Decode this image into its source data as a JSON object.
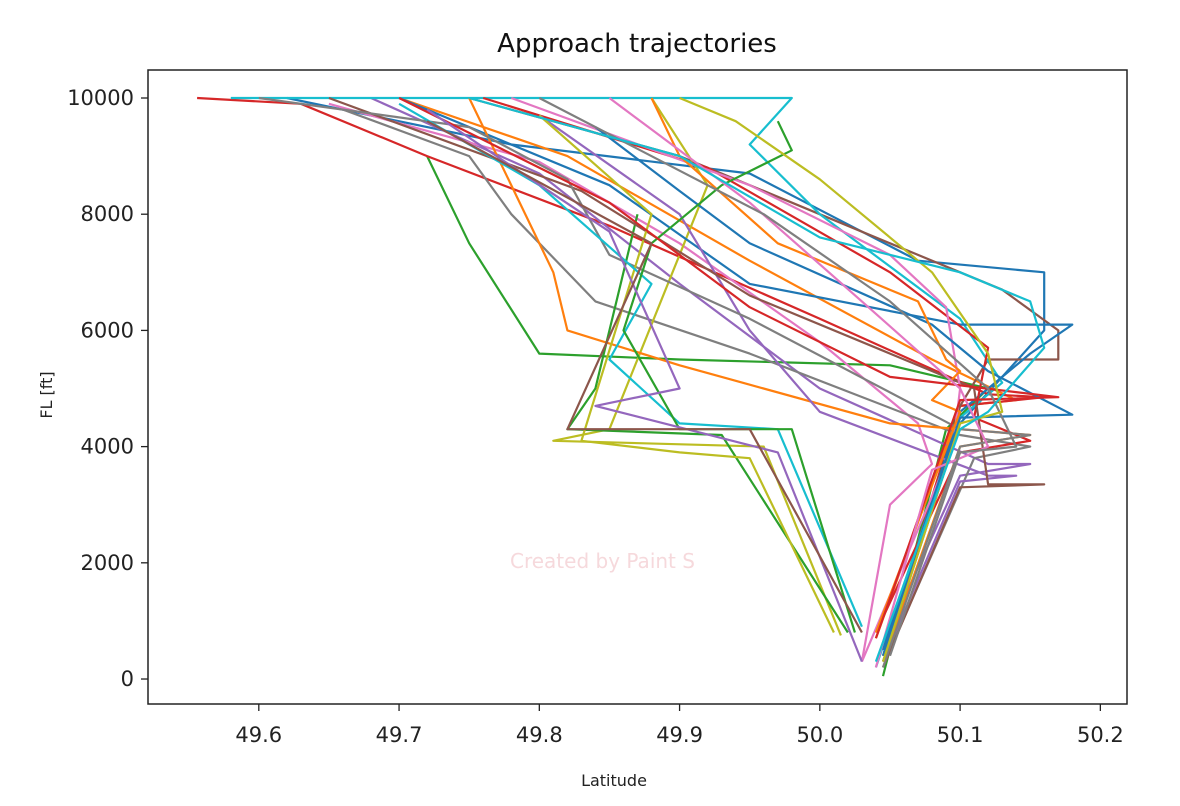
{
  "chart_data": {
    "type": "line",
    "title": "Approach trajectories",
    "xlabel": "Latitude",
    "ylabel": "FL [ft]",
    "xlim": [
      49.521,
      50.219
    ],
    "ylim": [
      -430,
      10482
    ],
    "xticks": [
      "49.6",
      "49.7",
      "49.8",
      "49.9",
      "50.0",
      "50.1",
      "50.2"
    ],
    "yticks": [
      "0",
      "2000",
      "4000",
      "6000",
      "8000",
      "10000"
    ],
    "grid": false,
    "legend": "none",
    "watermark": "Created by Paint S",
    "colors": [
      "#1f77b4",
      "#ff7f0e",
      "#2ca02c",
      "#d62728",
      "#9467bd",
      "#8c564b",
      "#e377c2",
      "#7f7f7f",
      "#bcbd22",
      "#17becf"
    ],
    "series": [
      {
        "points": [
          [
            49.62,
            10000
          ],
          [
            49.78,
            9200
          ],
          [
            49.95,
            8700
          ],
          [
            50.07,
            7200
          ],
          [
            50.16,
            7000
          ],
          [
            50.16,
            6000
          ],
          [
            50.13,
            5200
          ],
          [
            50.1,
            4400
          ],
          [
            50.045,
            300
          ]
        ]
      },
      {
        "points": [
          [
            49.7,
            10000
          ],
          [
            49.82,
            9000
          ],
          [
            49.95,
            7200
          ],
          [
            50.08,
            5500
          ],
          [
            50.14,
            4800
          ],
          [
            50.1,
            4700
          ],
          [
            50.04,
            700
          ]
        ]
      },
      {
        "points": [
          [
            49.72,
            9000
          ],
          [
            49.75,
            7500
          ],
          [
            49.8,
            5600
          ],
          [
            49.9,
            5500
          ],
          [
            50.05,
            5400
          ],
          [
            50.12,
            5000
          ],
          [
            50.09,
            4300
          ],
          [
            50.045,
            50
          ]
        ]
      },
      {
        "points": [
          [
            49.556,
            10000
          ],
          [
            49.63,
            9900
          ],
          [
            49.72,
            9000
          ],
          [
            49.85,
            7800
          ],
          [
            50.0,
            6200
          ],
          [
            50.12,
            4900
          ],
          [
            50.16,
            4850
          ],
          [
            50.1,
            4700
          ],
          [
            50.045,
            400
          ]
        ]
      },
      {
        "points": [
          [
            49.68,
            10000
          ],
          [
            49.8,
            8700
          ],
          [
            49.9,
            6800
          ],
          [
            50.0,
            5000
          ],
          [
            50.12,
            3700
          ],
          [
            50.15,
            3700
          ],
          [
            50.1,
            3500
          ],
          [
            50.045,
            600
          ]
        ]
      },
      {
        "points": [
          [
            49.75,
            10000
          ],
          [
            49.9,
            9000
          ],
          [
            50.05,
            7500
          ],
          [
            50.13,
            6700
          ],
          [
            50.17,
            6000
          ],
          [
            50.17,
            5500
          ],
          [
            50.12,
            5500
          ],
          [
            50.1,
            4700
          ],
          [
            50.05,
            600
          ]
        ]
      },
      {
        "points": [
          [
            49.65,
            9900
          ],
          [
            49.8,
            8900
          ],
          [
            49.9,
            7500
          ],
          [
            50.0,
            5800
          ],
          [
            50.07,
            4400
          ],
          [
            50.08,
            3700
          ],
          [
            50.05,
            3000
          ],
          [
            50.03,
            300
          ]
        ]
      },
      {
        "points": [
          [
            49.66,
            9800
          ],
          [
            49.75,
            9000
          ],
          [
            49.78,
            8000
          ],
          [
            49.84,
            6500
          ],
          [
            49.95,
            5600
          ],
          [
            50.1,
            4200
          ],
          [
            50.15,
            4000
          ],
          [
            50.11,
            3800
          ],
          [
            50.05,
            500
          ]
        ]
      },
      {
        "points": [
          [
            49.88,
            10000
          ],
          [
            49.92,
            8500
          ],
          [
            49.85,
            4300
          ],
          [
            49.81,
            4100
          ],
          [
            49.96,
            4000
          ],
          [
            50.015,
            750
          ]
        ]
      },
      {
        "points": [
          [
            49.58,
            10000
          ],
          [
            49.98,
            10000
          ],
          [
            49.95,
            9200
          ],
          [
            50.0,
            8000
          ],
          [
            50.1,
            6200
          ],
          [
            50.13,
            5100
          ],
          [
            50.1,
            4500
          ],
          [
            50.04,
            200
          ]
        ]
      },
      {
        "points": [
          [
            49.7,
            10000
          ],
          [
            49.85,
            8500
          ],
          [
            49.95,
            6800
          ],
          [
            50.1,
            6100
          ],
          [
            50.18,
            6100
          ],
          [
            50.15,
            5600
          ],
          [
            50.1,
            4600
          ],
          [
            50.045,
            400
          ]
        ]
      },
      {
        "points": [
          [
            49.75,
            10000
          ],
          [
            49.81,
            7000
          ],
          [
            49.82,
            6000
          ],
          [
            49.9,
            5400
          ],
          [
            50.05,
            4400
          ],
          [
            50.15,
            4200
          ],
          [
            50.1,
            4000
          ],
          [
            50.045,
            300
          ]
        ]
      },
      {
        "points": [
          [
            49.87,
            8000
          ],
          [
            49.84,
            5000
          ],
          [
            49.82,
            4300
          ],
          [
            49.93,
            4200
          ],
          [
            50.02,
            800
          ]
        ]
      },
      {
        "points": [
          [
            49.76,
            10000
          ],
          [
            49.92,
            8800
          ],
          [
            50.05,
            7000
          ],
          [
            50.12,
            5700
          ],
          [
            50.11,
            4500
          ],
          [
            50.15,
            4100
          ],
          [
            50.1,
            3900
          ],
          [
            50.04,
            800
          ]
        ]
      },
      {
        "points": [
          [
            49.8,
            9700
          ],
          [
            49.9,
            8000
          ],
          [
            49.95,
            6000
          ],
          [
            50.0,
            4600
          ],
          [
            50.12,
            3500
          ],
          [
            50.14,
            3500
          ],
          [
            50.1,
            3400
          ],
          [
            50.045,
            300
          ]
        ]
      },
      {
        "points": [
          [
            49.65,
            10000
          ],
          [
            49.83,
            8400
          ],
          [
            49.95,
            6600
          ],
          [
            50.05,
            5600
          ],
          [
            50.11,
            5000
          ],
          [
            50.12,
            3350
          ],
          [
            50.16,
            3350
          ],
          [
            50.1,
            3300
          ],
          [
            50.045,
            200
          ]
        ]
      },
      {
        "points": [
          [
            49.78,
            10000
          ],
          [
            49.95,
            8500
          ],
          [
            50.05,
            7300
          ],
          [
            50.09,
            6400
          ],
          [
            50.1,
            5000
          ],
          [
            50.095,
            4000
          ],
          [
            50.03,
            300
          ]
        ]
      },
      {
        "points": [
          [
            49.6,
            10000
          ],
          [
            49.75,
            9500
          ],
          [
            49.82,
            8600
          ],
          [
            49.85,
            7300
          ],
          [
            49.95,
            6200
          ],
          [
            50.1,
            4300
          ],
          [
            50.15,
            4200
          ],
          [
            50.1,
            4000
          ],
          [
            50.045,
            200
          ]
        ]
      },
      {
        "points": [
          [
            49.8,
            9700
          ],
          [
            49.88,
            8000
          ],
          [
            49.83,
            4100
          ],
          [
            49.9,
            3900
          ],
          [
            49.95,
            3800
          ],
          [
            50.01,
            800
          ]
        ]
      },
      {
        "points": [
          [
            49.7,
            9900
          ],
          [
            49.8,
            8500
          ],
          [
            49.88,
            6800
          ],
          [
            49.85,
            5500
          ],
          [
            49.9,
            4400
          ],
          [
            49.97,
            4300
          ],
          [
            50.03,
            900
          ]
        ]
      },
      {
        "points": [
          [
            49.84,
            9500
          ],
          [
            49.9,
            8400
          ],
          [
            49.95,
            7500
          ],
          [
            50.08,
            6100
          ],
          [
            50.12,
            5300
          ],
          [
            50.18,
            4550
          ],
          [
            50.1,
            4500
          ],
          [
            50.045,
            500
          ]
        ]
      },
      {
        "points": [
          [
            49.88,
            10000
          ],
          [
            49.9,
            9000
          ],
          [
            49.97,
            7500
          ],
          [
            50.07,
            6500
          ],
          [
            50.09,
            5500
          ],
          [
            50.1,
            5300
          ],
          [
            50.08,
            4800
          ],
          [
            50.1,
            4600
          ],
          [
            50.04,
            800
          ]
        ]
      },
      {
        "points": [
          [
            49.97,
            9600
          ],
          [
            49.98,
            9100
          ],
          [
            49.93,
            8500
          ],
          [
            49.88,
            7500
          ],
          [
            49.86,
            6000
          ],
          [
            49.9,
            4300
          ],
          [
            49.98,
            4300
          ],
          [
            50.025,
            800
          ]
        ]
      },
      {
        "points": [
          [
            49.7,
            10000
          ],
          [
            49.85,
            8200
          ],
          [
            49.95,
            6400
          ],
          [
            50.05,
            5200
          ],
          [
            50.17,
            4850
          ],
          [
            50.1,
            4800
          ],
          [
            50.04,
            700
          ]
        ]
      },
      {
        "points": [
          [
            49.72,
            9800
          ],
          [
            49.85,
            7700
          ],
          [
            49.9,
            5000
          ],
          [
            49.84,
            4700
          ],
          [
            49.97,
            3900
          ],
          [
            50.03,
            300
          ]
        ]
      },
      {
        "points": [
          [
            49.72,
            9600
          ],
          [
            49.88,
            7500
          ],
          [
            49.82,
            4300
          ],
          [
            49.95,
            4300
          ],
          [
            50.03,
            800
          ]
        ]
      },
      {
        "points": [
          [
            49.85,
            10000
          ],
          [
            49.95,
            8200
          ],
          [
            50.03,
            6500
          ],
          [
            50.1,
            5000
          ],
          [
            50.12,
            4000
          ],
          [
            50.08,
            3600
          ],
          [
            50.04,
            200
          ]
        ]
      },
      {
        "points": [
          [
            49.8,
            10000
          ],
          [
            49.96,
            8000
          ],
          [
            50.05,
            6500
          ],
          [
            50.12,
            5000
          ],
          [
            50.14,
            4000
          ],
          [
            50.1,
            3900
          ],
          [
            50.05,
            400
          ]
        ]
      },
      {
        "points": [
          [
            49.9,
            10000
          ],
          [
            49.94,
            9600
          ],
          [
            50.0,
            8600
          ],
          [
            50.08,
            7000
          ],
          [
            50.12,
            5600
          ],
          [
            50.13,
            4600
          ],
          [
            50.1,
            4400
          ],
          [
            50.045,
            300
          ]
        ]
      },
      {
        "points": [
          [
            49.75,
            10000
          ],
          [
            49.9,
            9000
          ],
          [
            50.0,
            7600
          ],
          [
            50.1,
            7000
          ],
          [
            50.15,
            6500
          ],
          [
            50.16,
            5700
          ],
          [
            50.12,
            4600
          ],
          [
            50.1,
            4300
          ],
          [
            50.04,
            300
          ]
        ]
      }
    ]
  }
}
